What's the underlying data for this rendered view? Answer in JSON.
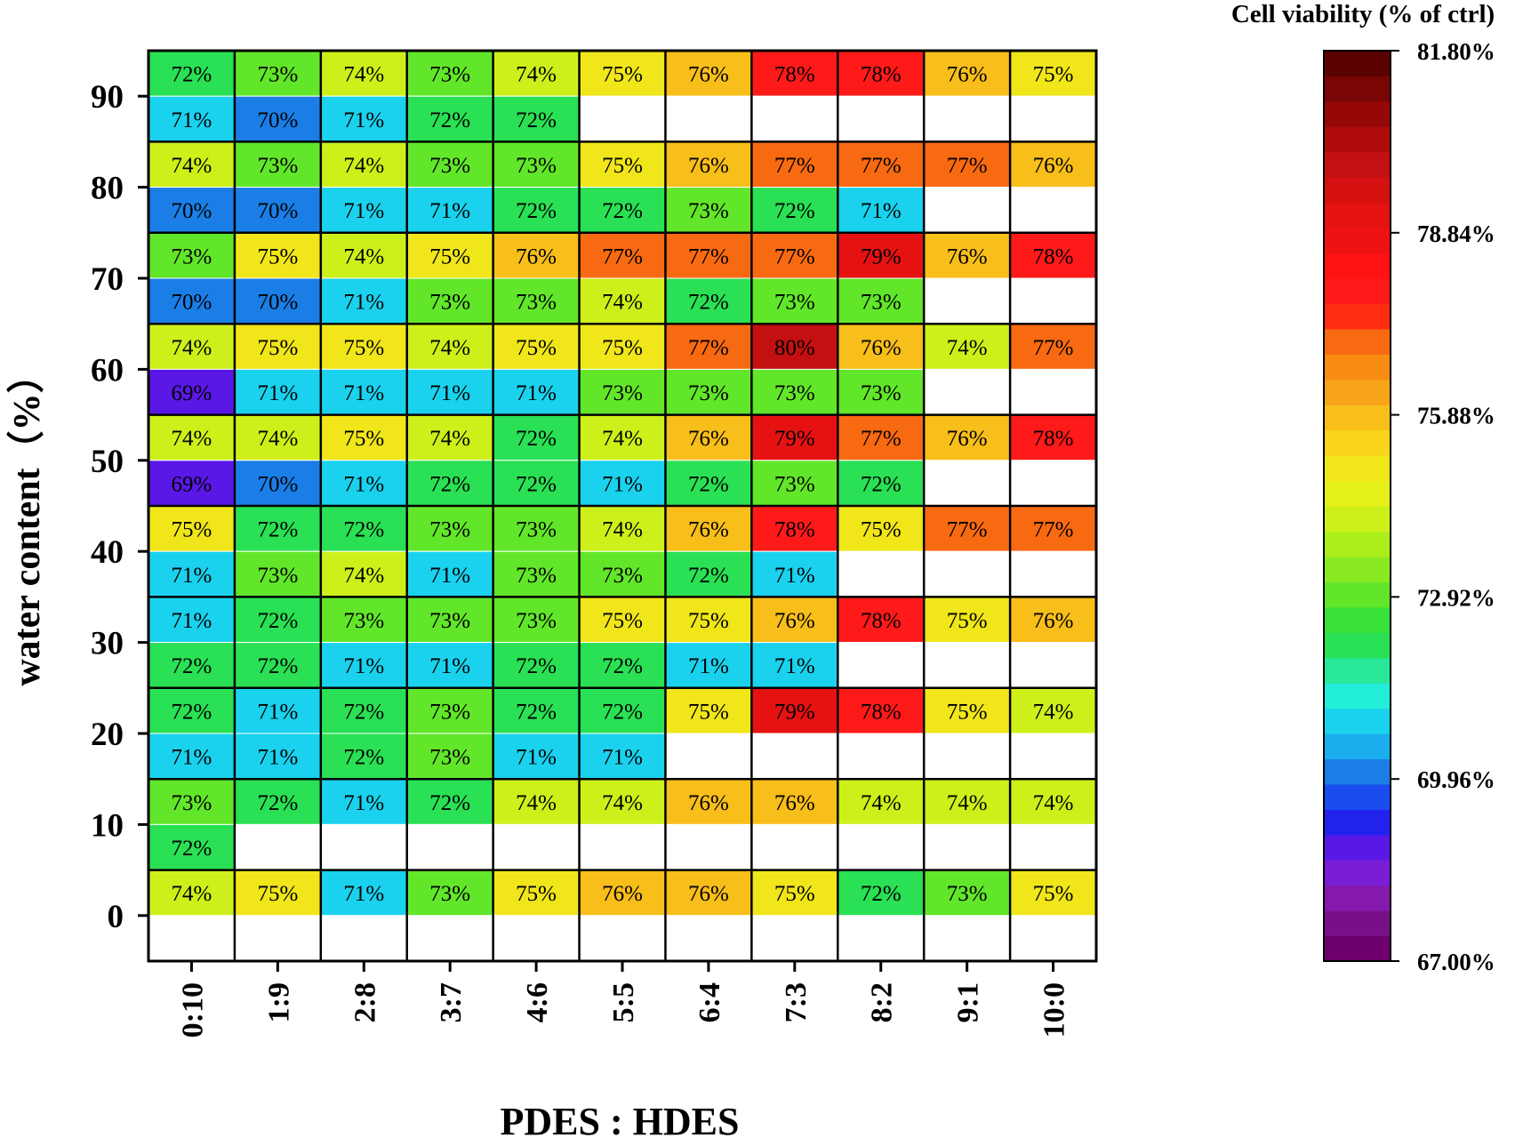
{
  "chart_data": {
    "type": "heatmap",
    "xlabel": "PDES : HDES",
    "ylabel": "water content（%）",
    "x_categories": [
      "0:10",
      "1:9",
      "2:8",
      "3:7",
      "4:6",
      "5:5",
      "6:4",
      "7:3",
      "8:2",
      "9:1",
      "10:0"
    ],
    "y_ticks": [
      "0",
      "10",
      "20",
      "30",
      "40",
      "50",
      "60",
      "70",
      "80",
      "90"
    ],
    "rows": [
      {
        "water": "90",
        "top": [
          72,
          73,
          74,
          73,
          74,
          75,
          76,
          78,
          78,
          76,
          75
        ],
        "bottom": [
          71,
          70,
          71,
          72,
          72,
          null,
          null,
          null,
          null,
          null,
          null
        ]
      },
      {
        "water": "80",
        "top": [
          74,
          73,
          74,
          73,
          73,
          75,
          76,
          77,
          77,
          77,
          76
        ],
        "bottom": [
          70,
          70,
          71,
          71,
          72,
          72,
          73,
          72,
          71,
          null,
          null
        ]
      },
      {
        "water": "70",
        "top": [
          73,
          75,
          74,
          75,
          76,
          77,
          77,
          77,
          79,
          76,
          78
        ],
        "bottom": [
          70,
          70,
          71,
          73,
          73,
          74,
          72,
          73,
          73,
          null,
          null
        ]
      },
      {
        "water": "60",
        "top": [
          74,
          75,
          75,
          74,
          75,
          75,
          77,
          80,
          76,
          74,
          77
        ],
        "bottom": [
          69,
          71,
          71,
          71,
          71,
          73,
          73,
          73,
          73,
          null,
          null
        ]
      },
      {
        "water": "50",
        "top": [
          74,
          74,
          75,
          74,
          72,
          74,
          76,
          79,
          77,
          76,
          78
        ],
        "bottom": [
          69,
          70,
          71,
          72,
          72,
          71,
          72,
          73,
          72,
          null,
          null
        ]
      },
      {
        "water": "40",
        "top": [
          75,
          72,
          72,
          73,
          73,
          74,
          76,
          78,
          75,
          77,
          77
        ],
        "bottom": [
          71,
          73,
          74,
          71,
          73,
          73,
          72,
          71,
          null,
          null,
          null
        ]
      },
      {
        "water": "30",
        "top": [
          71,
          72,
          73,
          73,
          73,
          75,
          75,
          76,
          78,
          75,
          76
        ],
        "bottom": [
          72,
          72,
          71,
          71,
          72,
          72,
          71,
          71,
          null,
          null,
          null
        ]
      },
      {
        "water": "20",
        "top": [
          72,
          71,
          72,
          73,
          72,
          72,
          75,
          79,
          78,
          75,
          74
        ],
        "bottom": [
          71,
          71,
          72,
          73,
          71,
          71,
          null,
          null,
          null,
          null,
          null
        ]
      },
      {
        "water": "10",
        "top": [
          73,
          72,
          71,
          72,
          74,
          74,
          76,
          76,
          74,
          74,
          74
        ],
        "bottom": [
          72,
          null,
          null,
          null,
          null,
          null,
          null,
          null,
          null,
          null,
          null
        ]
      },
      {
        "water": "0",
        "top": [
          74,
          75,
          71,
          73,
          75,
          76,
          76,
          75,
          72,
          73,
          75
        ],
        "bottom": [
          null,
          null,
          null,
          null,
          null,
          null,
          null,
          null,
          null,
          null,
          null
        ]
      }
    ],
    "colorbar": {
      "title": "Cell viability (% of ctrl)",
      "min": 67.0,
      "max": 81.8,
      "tick_values": [
        81.8,
        78.84,
        75.88,
        72.92,
        69.96,
        67.0
      ],
      "tick_labels": [
        "81.80%",
        "78.84%",
        "75.88%",
        "72.92%",
        "69.96%",
        "67.00%"
      ],
      "colors": [
        "#6d006d",
        "#7a0f8a",
        "#8518ad",
        "#7a1ed6",
        "#5a18e6",
        "#2222ee",
        "#1a4cf0",
        "#1a7ee6",
        "#1aaeee",
        "#1ad2ee",
        "#22eed8",
        "#2ae89a",
        "#2ae054",
        "#38e038",
        "#62e62a",
        "#8aea22",
        "#acee1a",
        "#cef01a",
        "#e6f01a",
        "#f0e61a",
        "#f8d51a",
        "#f8be1a",
        "#f8a41a",
        "#f88c12",
        "#f86a12",
        "#ff2c12",
        "#ff1a1a",
        "#ff1212",
        "#f01212",
        "#e61212",
        "#d41010",
        "#c41010",
        "#b00c0c",
        "#960808",
        "#7a0505",
        "#5a0202"
      ]
    }
  }
}
